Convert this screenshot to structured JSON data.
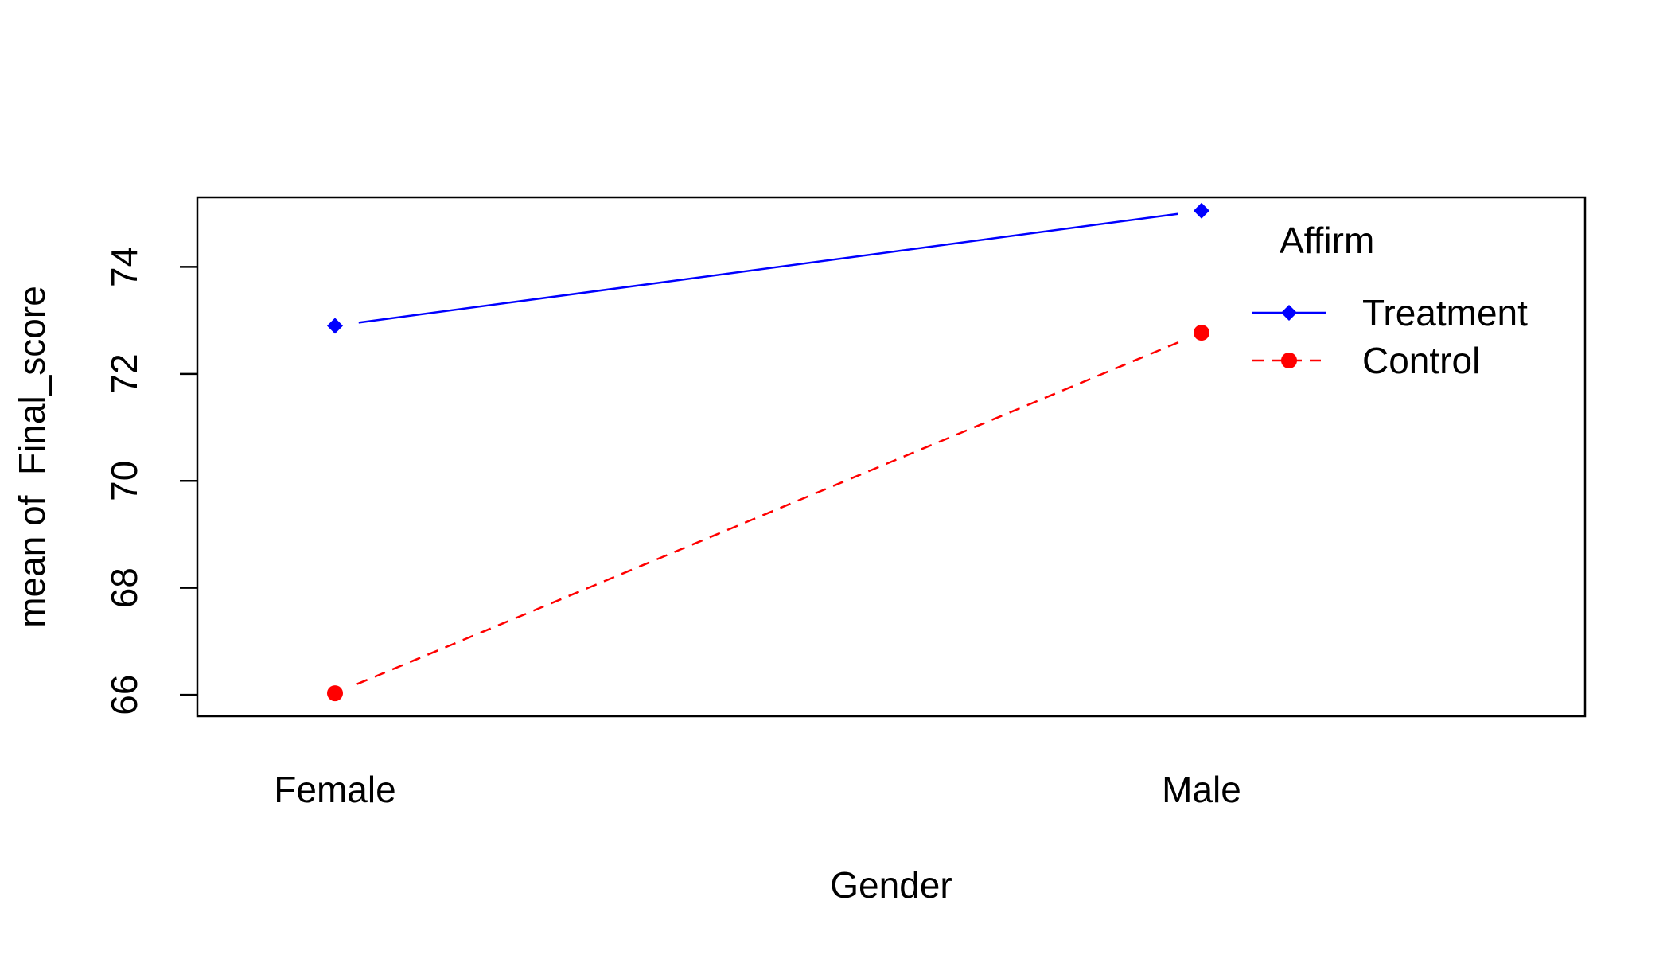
{
  "chart_data": {
    "type": "line",
    "title": "",
    "xlabel": "Gender",
    "ylabel": "mean of  Final_score",
    "categories": [
      "Female",
      "Male"
    ],
    "ylim": [
      65.6,
      75.3
    ],
    "yticks": [
      66,
      68,
      70,
      72,
      74
    ],
    "ytick_labels": [
      "66",
      "68",
      "70",
      "72",
      "74"
    ],
    "grid": false,
    "legend": {
      "title": "Affirm",
      "position": "top-right"
    },
    "series": [
      {
        "name": "Treatment",
        "values": [
          72.9,
          75.05
        ],
        "color": "#0000ff",
        "marker": "diamond",
        "line_style": "solid"
      },
      {
        "name": "Control",
        "values": [
          66.03,
          72.77
        ],
        "color": "#ff0000",
        "marker": "circle",
        "line_style": "dashed"
      }
    ]
  }
}
